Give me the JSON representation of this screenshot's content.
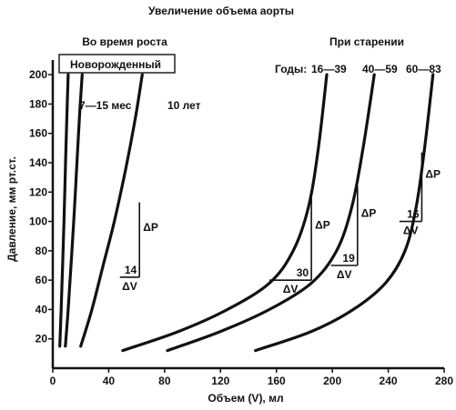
{
  "chart_data": {
    "type": "line",
    "title": "Увеличение объема аорты",
    "xlabel": "Объем (V), мл",
    "ylabel": "Давление, мм рт.ст.",
    "xlim": [
      0,
      280
    ],
    "ylim": [
      0,
      210
    ],
    "x_ticks": [
      "0",
      "40",
      "80",
      "120",
      "160",
      "200",
      "240",
      "280"
    ],
    "y_ticks": [
      "20",
      "40",
      "60",
      "80",
      "100",
      "120",
      "140",
      "160",
      "180",
      "200"
    ],
    "grid": false,
    "group_labels": {
      "growth": "Во время роста",
      "aging": "При старении",
      "aging_years_prefix": "Годы:"
    },
    "series": [
      {
        "name": "Новорожденный",
        "group": "growth",
        "x": [
          5,
          6,
          7,
          8,
          9,
          10,
          11
        ],
        "y": [
          15,
          40,
          70,
          100,
          135,
          170,
          200
        ]
      },
      {
        "name": "7—15 мес",
        "group": "growth",
        "x": [
          9,
          11,
          13,
          15,
          17,
          19,
          21
        ],
        "y": [
          15,
          40,
          70,
          100,
          135,
          170,
          200
        ]
      },
      {
        "name": "10 лет",
        "group": "growth",
        "x": [
          20,
          28,
          36,
          44,
          52,
          59,
          64
        ],
        "y": [
          15,
          40,
          70,
          100,
          135,
          170,
          200
        ]
      },
      {
        "name": "16—39",
        "group": "aging",
        "x": [
          50,
          90,
          125,
          155,
          172,
          183,
          190,
          196
        ],
        "y": [
          12,
          25,
          40,
          58,
          80,
          110,
          150,
          200
        ]
      },
      {
        "name": "40—59",
        "group": "aging",
        "x": [
          82,
          120,
          155,
          185,
          203,
          214,
          222,
          230
        ],
        "y": [
          12,
          25,
          40,
          58,
          80,
          110,
          150,
          200
        ]
      },
      {
        "name": "60—83",
        "group": "aging",
        "x": [
          145,
          185,
          215,
          238,
          252,
          260,
          266,
          272
        ],
        "y": [
          12,
          25,
          40,
          58,
          80,
          110,
          150,
          200
        ]
      }
    ],
    "annotations": [
      {
        "series": "10 лет",
        "dv_label": "14",
        "x0": 48,
        "x1": 62,
        "y0": 62,
        "y1": 113,
        "dp_label": "ΔP",
        "dv_text": "ΔV"
      },
      {
        "series": "16—39",
        "dv_label": "30",
        "x0": 155,
        "x1": 185,
        "y0": 60,
        "y1": 118,
        "dp_label": "ΔP",
        "dv_text": "ΔV"
      },
      {
        "series": "40—59",
        "dv_label": "19",
        "x0": 199,
        "x1": 218,
        "y0": 70,
        "y1": 124,
        "dp_label": "ΔP",
        "dv_text": "ΔV"
      },
      {
        "series": "60—83",
        "dv_label": "16",
        "x0": 248,
        "x1": 264,
        "y0": 100,
        "y1": 147,
        "dp_label": "ΔP",
        "dv_text": "ΔV"
      }
    ]
  }
}
